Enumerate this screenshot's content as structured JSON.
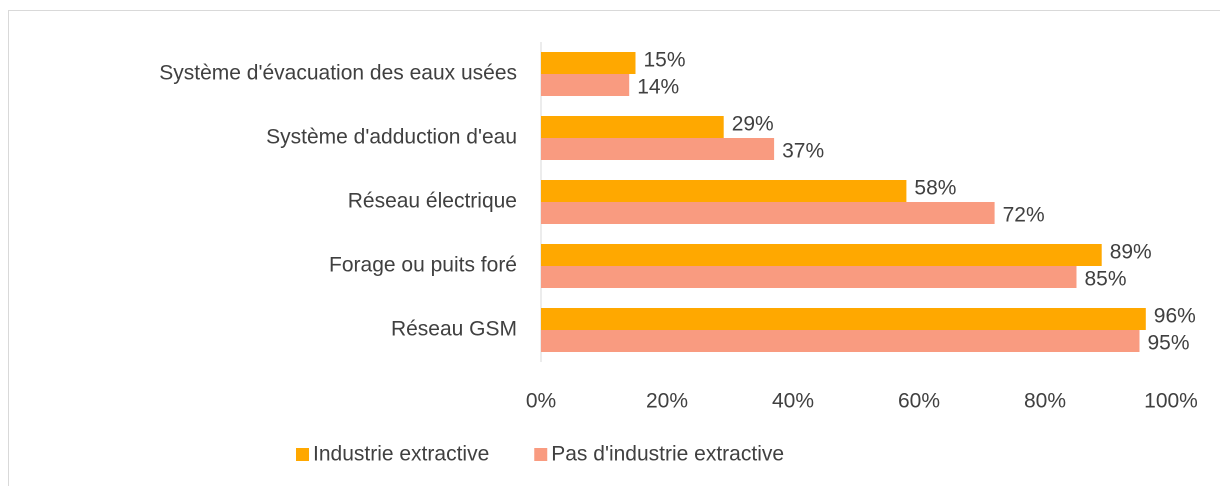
{
  "chart_data": {
    "type": "bar",
    "orientation": "horizontal",
    "categories": [
      "Système d'évacuation des eaux usées",
      "Système d'adduction d'eau",
      "Réseau électrique",
      "Forage ou puits foré",
      "Réseau GSM"
    ],
    "series": [
      {
        "name": "Industrie extractive",
        "color": "#ffa800",
        "values": [
          15,
          29,
          58,
          89,
          96
        ],
        "value_labels": [
          "15%",
          "29%",
          "58%",
          "89%",
          "96%"
        ]
      },
      {
        "name": "Pas d'industrie extractive",
        "color": "#f99b80",
        "values": [
          14,
          37,
          72,
          85,
          95
        ],
        "value_labels": [
          "14%",
          "37%",
          "72%",
          "85%",
          "95%"
        ]
      }
    ],
    "xlim": [
      0,
      100
    ],
    "xticks": [
      {
        "value": 0,
        "label": "0%"
      },
      {
        "value": 20,
        "label": "20%"
      },
      {
        "value": 40,
        "label": "40%"
      },
      {
        "value": 60,
        "label": "60%"
      },
      {
        "value": 80,
        "label": "80%"
      },
      {
        "value": 100,
        "label": "100%"
      }
    ],
    "legend": "bottom"
  }
}
